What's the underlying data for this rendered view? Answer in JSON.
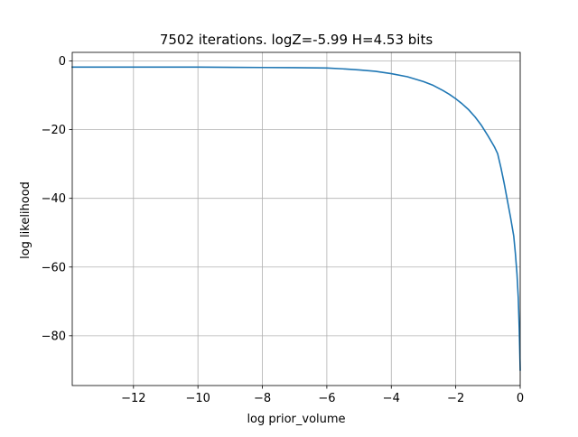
{
  "chart_data": {
    "type": "line",
    "title": "7502 iterations. logZ=-5.99 H=4.53 bits",
    "xlabel": "log prior_volume",
    "ylabel": "log likelihood",
    "xlim": [
      -13.9,
      0
    ],
    "ylim": [
      -94.5,
      2.5
    ],
    "grid": true,
    "colors": {
      "line": "#1f77b4",
      "grid": "#b0b0b0",
      "axes": "#000000"
    },
    "xticks": [
      {
        "value": -12,
        "label": "−12"
      },
      {
        "value": -10,
        "label": "−10"
      },
      {
        "value": -8,
        "label": "−8"
      },
      {
        "value": -6,
        "label": "−6"
      },
      {
        "value": -4,
        "label": "−4"
      },
      {
        "value": -2,
        "label": "−2"
      },
      {
        "value": 0,
        "label": "0"
      }
    ],
    "yticks": [
      {
        "value": 0,
        "label": "0"
      },
      {
        "value": -20,
        "label": "−20"
      },
      {
        "value": -40,
        "label": "−40"
      },
      {
        "value": -60,
        "label": "−60"
      },
      {
        "value": -80,
        "label": "−80"
      }
    ],
    "series": [
      {
        "x": [
          -13.9,
          -12,
          -10,
          -8,
          -7,
          -6,
          -5.5,
          -5,
          -4.5,
          -4,
          -3.5,
          -3,
          -2.7,
          -2.4,
          -2.2,
          -2,
          -1.8,
          -1.6,
          -1.4,
          -1.2,
          -1,
          -0.8,
          -0.7,
          -0.6,
          -0.5,
          -0.4,
          -0.3,
          -0.2,
          -0.15,
          -0.1,
          -0.06,
          -0.03,
          0
        ],
        "y": [
          -1.8,
          -1.8,
          -1.8,
          -1.9,
          -1.95,
          -2.05,
          -2.3,
          -2.6,
          -3.0,
          -3.7,
          -4.6,
          -6.0,
          -7.1,
          -8.6,
          -9.7,
          -11.0,
          -12.5,
          -14.2,
          -16.3,
          -18.8,
          -21.8,
          -25.0,
          -27.0,
          -31.0,
          -35.5,
          -40.5,
          -45.5,
          -51.0,
          -56.0,
          -62.0,
          -69.0,
          -78.0,
          -90.0
        ]
      }
    ]
  }
}
